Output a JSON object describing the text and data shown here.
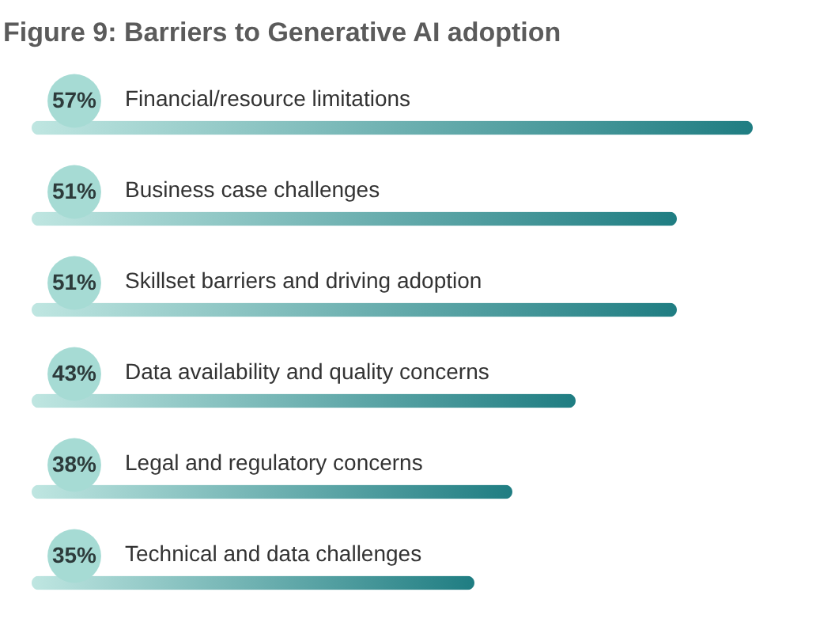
{
  "chart_data": {
    "type": "bar",
    "orientation": "horizontal",
    "title": "Figure 9: Barriers to Generative AI adoption",
    "categories": [
      "Financial/resource limitations",
      "Business case challenges",
      "Skillset barriers and driving adoption",
      "Data availability and quality concerns",
      "Legal and regulatory concerns",
      "Technical and data challenges"
    ],
    "values": [
      57,
      51,
      51,
      43,
      38,
      35
    ],
    "value_labels": [
      "57%",
      "51%",
      "51%",
      "43%",
      "38%",
      "35%"
    ],
    "color": "#1f7d82"
  }
}
